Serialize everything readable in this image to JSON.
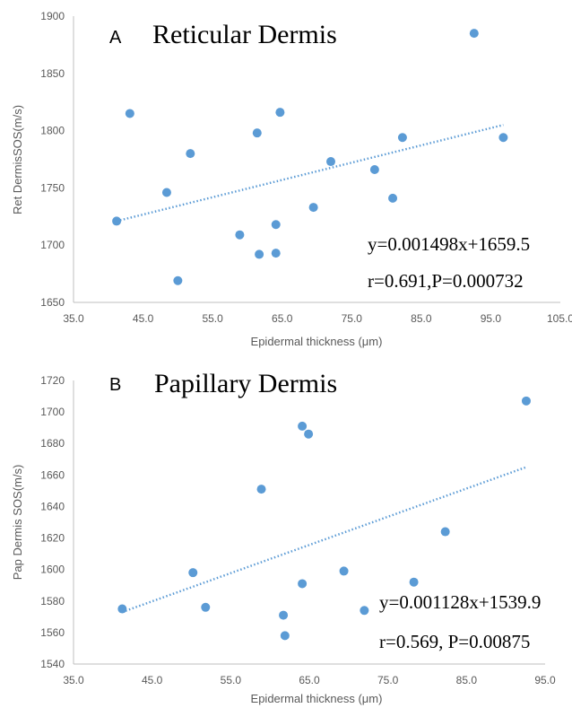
{
  "colors": {
    "point": "#5b9bd5",
    "axis": "#bfbfbf",
    "text": "#595959"
  },
  "chart_data": [
    {
      "type": "scatter",
      "panel_label": "A",
      "title": "Reticular Dermis",
      "xlabel": "Epidermal thickness (μm)",
      "ylabel": "Ret DermisSOS(m/s)",
      "xlim": [
        35,
        105
      ],
      "ylim": [
        1650,
        1900
      ],
      "xticks": [
        "35.0",
        "45.0",
        "55.0",
        "65.0",
        "75.0",
        "85.0",
        "95.0",
        "105.0"
      ],
      "yticks": [
        "1650",
        "1700",
        "1750",
        "1800",
        "1850",
        "1900"
      ],
      "grid": false,
      "trendline": {
        "style": "dotted",
        "slope_label": "y=0.001498x+1659.5",
        "x_range": [
          41.2,
          96.8
        ],
        "y_range": [
          1721,
          1805
        ]
      },
      "annotations": [
        "y=0.001498x+1659.5",
        "r=0.691,P=0.000732"
      ],
      "x": [
        41.2,
        43.1,
        48.4,
        50.0,
        51.8,
        58.9,
        61.4,
        61.7,
        64.1,
        64.1,
        64.7,
        69.5,
        72.0,
        78.3,
        80.9,
        82.3,
        92.6,
        96.8
      ],
      "y": [
        1721,
        1815,
        1746,
        1669,
        1780,
        1709,
        1798,
        1692,
        1718,
        1693,
        1816,
        1733,
        1773,
        1766,
        1741,
        1794,
        1885,
        1794
      ]
    },
    {
      "type": "scatter",
      "panel_label": "B",
      "title": "Papillary Dermis",
      "xlabel": "Epidermal thickness (μm)",
      "ylabel": "Pap Dermis SOS(m/s)",
      "xlim": [
        35,
        95
      ],
      "ylim": [
        1540,
        1720
      ],
      "xticks": [
        "35.0",
        "45.0",
        "55.0",
        "65.0",
        "75.0",
        "85.0",
        "95.0"
      ],
      "yticks": [
        "1540",
        "1560",
        "1580",
        "1600",
        "1620",
        "1640",
        "1660",
        "1680",
        "1700",
        "1720"
      ],
      "grid": false,
      "trendline": {
        "style": "dotted",
        "slope_label": "y=0.001128x+1539.9",
        "x_range": [
          41.2,
          92.6
        ],
        "y_range": [
          1573,
          1665
        ]
      },
      "annotations": [
        "y=0.001128x+1539.9",
        "r=0.569, P=0.00875"
      ],
      "x": [
        41.2,
        50.2,
        51.8,
        58.9,
        61.7,
        61.9,
        64.1,
        64.1,
        64.9,
        69.4,
        72.0,
        78.3,
        82.3,
        92.6
      ],
      "y": [
        1575,
        1598,
        1576,
        1651,
        1571,
        1558,
        1691,
        1591,
        1686,
        1599,
        1574,
        1592,
        1624,
        1707
      ]
    }
  ]
}
